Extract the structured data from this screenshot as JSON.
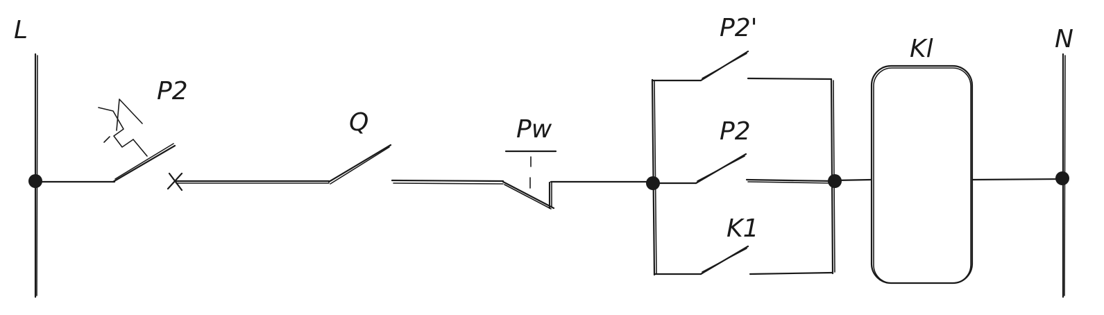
{
  "labels": {
    "line": "L",
    "neutral": "N",
    "p2_top": "P2",
    "q": "Q",
    "pw": "Pw",
    "p2_prime": "P2'",
    "p2_mid": "P2",
    "k1_contact": "K1",
    "k1_coil": "Kl"
  },
  "colors": {
    "ink": "#1a1a1a",
    "background": "#ffffff"
  }
}
